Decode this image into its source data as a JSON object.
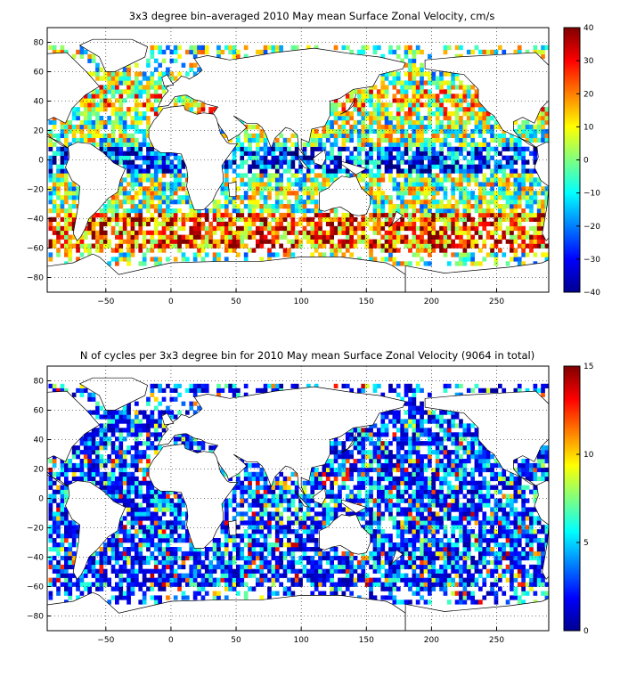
{
  "chart_data": [
    {
      "type": "heatmap",
      "title": "3x3 degree bin–averaged 2010 May mean Surface Zonal Velocity, cm/s",
      "xlabel": "",
      "ylabel": "",
      "xlim": [
        -95,
        290
      ],
      "ylim": [
        -90,
        90
      ],
      "xticks": [
        -50,
        0,
        50,
        100,
        150,
        200,
        250
      ],
      "yticks": [
        -80,
        -60,
        -40,
        -20,
        0,
        20,
        40,
        60,
        80
      ],
      "grid": "dotted",
      "colorbar": {
        "min": -40,
        "max": 40,
        "ticks": [
          -40,
          -30,
          -20,
          -10,
          0,
          10,
          20,
          30,
          40
        ],
        "colormap": "jet"
      },
      "bin_size_deg": 3
    },
    {
      "type": "heatmap",
      "title": "N of cycles per 3x3 degree bin for 2010 May mean Surface Zonal Velocity (9064 in total)",
      "xlabel": "",
      "ylabel": "",
      "xlim": [
        -95,
        290
      ],
      "ylim": [
        -90,
        90
      ],
      "xticks": [
        -50,
        0,
        50,
        100,
        150,
        200,
        250
      ],
      "yticks": [
        -80,
        -60,
        -40,
        -20,
        0,
        20,
        40,
        60,
        80
      ],
      "grid": "dotted",
      "colorbar": {
        "min": 0,
        "max": 15,
        "ticks": [
          0,
          5,
          10,
          15
        ],
        "colormap": "jet"
      },
      "bin_size_deg": 3
    }
  ]
}
